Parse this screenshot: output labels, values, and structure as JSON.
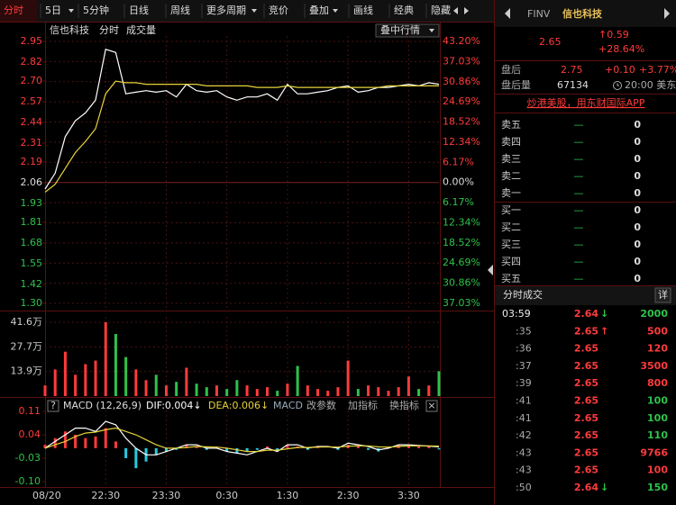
{
  "toolbar": {
    "active": 0,
    "tabs": [
      {
        "label": "分时",
        "dropdown": false
      },
      {
        "label": "5日",
        "dropdown": true
      },
      {
        "label": "5分钟",
        "dropdown": false
      },
      {
        "label": "日线",
        "dropdown": false
      },
      {
        "label": "周线",
        "dropdown": false
      },
      {
        "label": "更多周期",
        "dropdown": true
      },
      {
        "label": "竞价",
        "dropdown": false
      },
      {
        "label": "叠加",
        "dropdown": true
      },
      {
        "label": "画线",
        "dropdown": false
      },
      {
        "label": "经典",
        "dropdown": false
      },
      {
        "label": "隐藏",
        "dropdown": false
      }
    ]
  },
  "chart_header": {
    "name": "信也科技",
    "mode": "分时",
    "volume": "成交量",
    "button": "叠中行情"
  },
  "chart_data": [
    {
      "type": "line",
      "x": [
        0,
        10,
        20,
        30,
        40,
        50,
        60,
        70,
        80,
        90,
        100,
        110,
        120,
        130,
        140,
        150,
        160,
        170,
        180,
        190,
        200,
        210,
        220,
        230,
        240,
        250,
        260,
        270,
        280,
        290,
        300,
        310,
        320,
        330,
        340,
        350,
        360,
        370,
        380,
        390
      ],
      "xlim": [
        0,
        390
      ],
      "xticks": [
        {
          "value": 0,
          "label": "08/20"
        },
        {
          "value": 60,
          "label": "22:30"
        },
        {
          "value": 120,
          "label": "23:30"
        },
        {
          "value": 180,
          "label": "0:30"
        },
        {
          "value": 240,
          "label": "1:30"
        },
        {
          "value": 300,
          "label": "2:30"
        },
        {
          "value": 360,
          "label": "3:30"
        }
      ],
      "ylim": [
        1.3,
        2.95
      ],
      "yticks": [
        2.95,
        2.82,
        {
          "value": 2.7,
          "label": "2.70"
        },
        2.57,
        2.44,
        2.31,
        2.19,
        2.06,
        1.93,
        1.81,
        1.68,
        1.55,
        1.42,
        {
          "value": 1.3,
          "label": "1.30"
        }
      ],
      "y2lim": [
        -37.03,
        43.2
      ],
      "y2ticks": [
        {
          "value": 43.2,
          "label": "43.20%"
        },
        {
          "value": 37.03,
          "label": "37.03%"
        },
        {
          "value": 30.86,
          "label": "30.86%"
        },
        {
          "value": 24.69,
          "label": "24.69%"
        },
        {
          "value": 18.52,
          "label": "18.52%"
        },
        {
          "value": 12.34,
          "label": "12.34%"
        },
        {
          "value": 6.17,
          "label": "6.17%"
        },
        {
          "value": 0,
          "label": "0.00%"
        },
        {
          "value": -6.17,
          "label": "6.17%"
        },
        {
          "value": -12.34,
          "label": "12.34%"
        },
        {
          "value": -18.52,
          "label": "18.52%"
        },
        {
          "value": -24.69,
          "label": "24.69%"
        },
        {
          "value": -30.86,
          "label": "30.86%"
        },
        {
          "value": -37.03,
          "label": "37.03%"
        }
      ],
      "grid": true,
      "colors": {
        "up": "#ff3b3b",
        "down": "#2ec24a",
        "flat": "#dddddd"
      },
      "series": [
        {
          "name": "价格",
          "color": "#ffffff",
          "values": [
            2.02,
            2.12,
            2.35,
            2.45,
            2.5,
            2.58,
            2.9,
            2.88,
            2.62,
            2.63,
            2.64,
            2.63,
            2.64,
            2.6,
            2.68,
            2.64,
            2.63,
            2.64,
            2.6,
            2.58,
            2.6,
            2.6,
            2.62,
            2.58,
            2.68,
            2.62,
            2.62,
            2.63,
            2.64,
            2.66,
            2.67,
            2.63,
            2.64,
            2.66,
            2.66,
            2.67,
            2.68,
            2.67,
            2.69,
            2.68
          ]
        },
        {
          "name": "均价",
          "color": "#e6d23a",
          "values": [
            2.0,
            2.05,
            2.15,
            2.25,
            2.32,
            2.4,
            2.62,
            2.7,
            2.69,
            2.69,
            2.68,
            2.68,
            2.68,
            2.68,
            2.68,
            2.68,
            2.67,
            2.67,
            2.67,
            2.67,
            2.67,
            2.66,
            2.66,
            2.66,
            2.67,
            2.66,
            2.66,
            2.66,
            2.66,
            2.66,
            2.66,
            2.66,
            2.66,
            2.66,
            2.67,
            2.67,
            2.67,
            2.67,
            2.67,
            2.67
          ]
        }
      ]
    },
    {
      "type": "bar",
      "x": [
        0,
        10,
        20,
        30,
        40,
        50,
        60,
        70,
        80,
        90,
        100,
        110,
        120,
        130,
        140,
        150,
        160,
        170,
        180,
        190,
        200,
        210,
        220,
        230,
        240,
        250,
        260,
        270,
        280,
        290,
        300,
        310,
        320,
        330,
        340,
        350,
        360,
        370,
        380,
        390
      ],
      "xlim": [
        0,
        390
      ],
      "ylim": [
        0,
        416000
      ],
      "yticks": [
        {
          "value": 416000,
          "label": "41.6万"
        },
        {
          "value": 277000,
          "label": "27.7万"
        },
        {
          "value": 139000,
          "label": "13.9万"
        }
      ],
      "grid": true,
      "values": [
        60000,
        150000,
        250000,
        120000,
        180000,
        200000,
        416000,
        350000,
        220000,
        150000,
        90000,
        120000,
        60000,
        80000,
        160000,
        70000,
        50000,
        60000,
        40000,
        90000,
        60000,
        40000,
        50000,
        30000,
        70000,
        170000,
        60000,
        40000,
        30000,
        50000,
        200000,
        40000,
        60000,
        50000,
        30000,
        50000,
        110000,
        40000,
        60000,
        140000
      ]
    },
    {
      "type": "macd",
      "title": "MACD (12,26,9)",
      "help": "?",
      "close": "×",
      "labels": {
        "dif": "DIF:0.004↓",
        "dea": "DEA:0.006↓",
        "macd": "MACD"
      },
      "actions": [
        "改参数",
        "加指标",
        "换指标"
      ],
      "x": [
        0,
        10,
        20,
        30,
        40,
        50,
        60,
        70,
        80,
        90,
        100,
        110,
        120,
        130,
        140,
        150,
        160,
        170,
        180,
        190,
        200,
        210,
        220,
        230,
        240,
        250,
        260,
        270,
        280,
        290,
        300,
        310,
        320,
        330,
        340,
        350,
        360,
        370,
        380,
        390
      ],
      "xlim": [
        0,
        390
      ],
      "ylim": [
        -0.1,
        0.11
      ],
      "yticks": [
        0.11,
        0.04,
        -0.03,
        {
          "value": -0.1,
          "label": "-0.10"
        }
      ],
      "colors": {
        "up": "#ff3b3b",
        "down": "#27c9e0"
      },
      "values": [
        0.01,
        0.03,
        0.05,
        0.04,
        0.03,
        0.035,
        0.06,
        0.02,
        -0.03,
        -0.06,
        -0.04,
        -0.02,
        -0.01,
        -0.005,
        0.01,
        0.005,
        -0.005,
        0.005,
        -0.01,
        -0.015,
        -0.01,
        -0.005,
        0.005,
        -0.01,
        0.01,
        0.005,
        -0.005,
        0.005,
        0,
        -0.005,
        0.01,
        0.005,
        -0.005,
        -0.01,
        0.005,
        0.01,
        0.008,
        0.005,
        0.004,
        -0.004
      ],
      "series": [
        {
          "name": "DIF",
          "color": "#ffffff",
          "values": [
            0,
            0.02,
            0.04,
            0.06,
            0.06,
            0.05,
            0.08,
            0.07,
            0.03,
            0,
            -0.02,
            -0.02,
            -0.01,
            0,
            0.01,
            0.01,
            0,
            0,
            -0.01,
            -0.015,
            -0.02,
            -0.01,
            0,
            -0.01,
            0.01,
            0.01,
            0,
            0.005,
            0.005,
            0,
            0.015,
            0.01,
            0.005,
            -0.005,
            0,
            0.01,
            0.01,
            0.008,
            0.006,
            0.004
          ]
        },
        {
          "name": "DEA",
          "color": "#e6d23a",
          "values": [
            0,
            0.01,
            0.02,
            0.035,
            0.045,
            0.048,
            0.055,
            0.06,
            0.05,
            0.04,
            0.025,
            0.01,
            0,
            0,
            0.002,
            0.005,
            0.004,
            0.003,
            0,
            -0.005,
            -0.01,
            -0.01,
            -0.006,
            -0.006,
            -0.002,
            0.002,
            0.002,
            0.003,
            0.004,
            0.003,
            0.006,
            0.007,
            0.007,
            0.004,
            0.003,
            0.005,
            0.007,
            0.007,
            0.007,
            0.006
          ]
        }
      ]
    }
  ],
  "quote": {
    "symbol": "FINV",
    "name": "信也科技",
    "price": 2.65,
    "change": "↑0.59",
    "change_pct": "+28.64%",
    "after_hours": {
      "label": "盘后",
      "price": 2.75,
      "change": "+0.10",
      "change_pct": "+3.77%",
      "volume_label": "盘后量",
      "volume": 67134,
      "time": "20:00 美东"
    },
    "ad": "炒港美股，用东财国际APP",
    "order_book": [
      {
        "name": "卖五",
        "price": "—",
        "volume": 0
      },
      {
        "name": "卖四",
        "price": "—",
        "volume": 0
      },
      {
        "name": "卖三",
        "price": "—",
        "volume": 0
      },
      {
        "name": "卖二",
        "price": "—",
        "volume": 0
      },
      {
        "name": "卖一",
        "price": "—",
        "volume": 0
      },
      {
        "name": "买一",
        "price": "—",
        "volume": 0
      },
      {
        "name": "买二",
        "price": "—",
        "volume": 0
      },
      {
        "name": "买三",
        "price": "—",
        "volume": 0
      },
      {
        "name": "买四",
        "price": "—",
        "volume": 0
      },
      {
        "name": "买五",
        "price": "—",
        "volume": 0
      }
    ],
    "trades_title": "分时成交",
    "trades_detail": "详",
    "trades": [
      {
        "time": "03:59",
        "price": 2.64,
        "arrow": "↓",
        "volume": 2000,
        "color": "#2ec24a"
      },
      {
        "time": ":35",
        "price": 2.65,
        "arrow": "↑",
        "volume": 500,
        "color": "#ff3b3b"
      },
      {
        "time": ":36",
        "price": 2.65,
        "volume": 120,
        "color": "#ff3b3b"
      },
      {
        "time": ":37",
        "price": 2.65,
        "volume": 3500,
        "color": "#ff3b3b"
      },
      {
        "time": ":39",
        "price": 2.65,
        "volume": 800,
        "color": "#ff3b3b"
      },
      {
        "time": ":41",
        "price": 2.65,
        "volume": 100,
        "color": "#2ec24a"
      },
      {
        "time": ":41",
        "price": 2.65,
        "volume": 100,
        "color": "#2ec24a"
      },
      {
        "time": ":42",
        "price": 2.65,
        "volume": 110,
        "color": "#2ec24a"
      },
      {
        "time": ":43",
        "price": 2.65,
        "volume": 9766,
        "color": "#ff3b3b"
      },
      {
        "time": ":43",
        "price": 2.65,
        "volume": 100,
        "color": "#ff3b3b"
      },
      {
        "time": ":50",
        "price": 2.64,
        "arrow": "↓",
        "volume": 150,
        "color": "#2ec24a"
      }
    ]
  }
}
